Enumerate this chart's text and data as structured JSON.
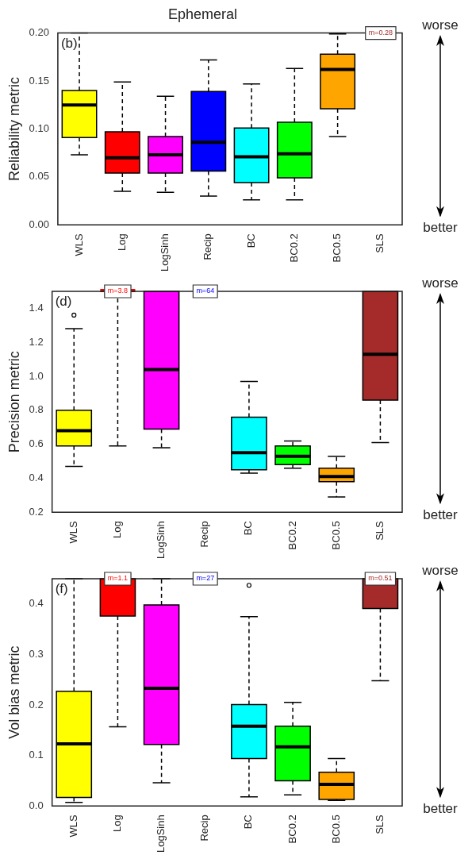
{
  "chart_data": [
    {
      "type": "box",
      "title": "Ephemeral",
      "ylabel": "Reliability metric",
      "categories": [
        "WLS",
        "Log",
        "LogSinh",
        "Recip",
        "BC",
        "BC0.2",
        "BC0.5",
        "SLS"
      ],
      "colors": [
        "#ffff00",
        "#ff0000",
        "#ff00ff",
        "#0000ff",
        "#00ffff",
        "#00ff00",
        "#ffa500",
        "#a52a2a"
      ],
      "boxes": [
        {
          "low": 0.073,
          "q1": 0.091,
          "median": 0.125,
          "q3": 0.14,
          "high": 0.2
        },
        {
          "low": 0.035,
          "q1": 0.054,
          "median": 0.07,
          "q3": 0.097,
          "high": 0.149
        },
        {
          "low": 0.034,
          "q1": 0.054,
          "median": 0.073,
          "q3": 0.092,
          "high": 0.134
        },
        {
          "low": 0.03,
          "q1": 0.056,
          "median": 0.086,
          "q3": 0.139,
          "high": 0.172
        },
        {
          "low": 0.026,
          "q1": 0.044,
          "median": 0.071,
          "q3": 0.101,
          "high": 0.147
        },
        {
          "low": 0.026,
          "q1": 0.049,
          "median": 0.074,
          "q3": 0.107,
          "high": 0.163
        },
        {
          "low": 0.092,
          "q1": 0.121,
          "median": 0.162,
          "q3": 0.178,
          "high": 0.199
        },
        null
      ],
      "ylim": [
        0,
        0.2
      ],
      "yticks": [
        {
          "value": 0,
          "label": "0.00"
        },
        {
          "value": 0.05,
          "label": "0.05"
        },
        {
          "value": 0.1,
          "label": "0.10"
        },
        {
          "value": 0.15,
          "label": "0.15"
        },
        {
          "value": 0.2,
          "label": "0.20"
        }
      ],
      "annotations": [
        "(b)",
        "worse",
        "better",
        {
          "text": "m=0.28",
          "x": "SLS"
        }
      ]
    },
    {
      "type": "box",
      "ylabel": "Precision metric",
      "categories": [
        "WLS",
        "Log",
        "LogSinh",
        "Recip",
        "BC",
        "BC0.2",
        "BC0.5",
        "SLS"
      ],
      "colors": [
        "#ffff00",
        "#ff0000",
        "#ff00ff",
        "#0000ff",
        "#00ffff",
        "#00ff00",
        "#ffa500",
        "#a52a2a"
      ],
      "boxes": [
        {
          "low": 0.47,
          "q1": 0.59,
          "median": 0.68,
          "q3": 0.8,
          "high": 1.28,
          "outliers": [
            1.36
          ]
        },
        {
          "low": 0.59,
          "q1": 1.5,
          "median": null,
          "q3": 1.5,
          "high": null
        },
        {
          "low": 0.58,
          "q1": 0.69,
          "median": 1.04,
          "q3": 1.5,
          "high": null
        },
        null,
        {
          "low": 0.43,
          "q1": 0.45,
          "median": 0.55,
          "q3": 0.76,
          "high": 0.97
        },
        {
          "low": 0.46,
          "q1": 0.48,
          "median": 0.53,
          "q3": 0.59,
          "high": 0.62
        },
        {
          "low": 0.29,
          "q1": 0.38,
          "median": 0.41,
          "q3": 0.46,
          "high": 0.53
        },
        {
          "low": 0.61,
          "q1": 0.86,
          "median": 1.13,
          "q3": 1.5,
          "high": null
        }
      ],
      "ylim": [
        0.2,
        1.5
      ],
      "yticks": [
        0.2,
        0.4,
        0.6,
        0.8,
        {
          "value": 1,
          "label": "1.0"
        },
        1.2,
        1.4
      ],
      "annotations": [
        "(d)",
        "worse",
        "better",
        {
          "text": "m=3.8",
          "x": "Log"
        },
        {
          "text": "m=64",
          "x": "Recip"
        }
      ]
    },
    {
      "type": "box",
      "ylabel": "Vol bias metric",
      "categories": [
        "WLS",
        "Log",
        "LogSinh",
        "Recip",
        "BC",
        "BC0.2",
        "BC0.5",
        "SLS"
      ],
      "colors": [
        "#ffff00",
        "#ff0000",
        "#ff00ff",
        "#0000ff",
        "#00ffff",
        "#00ff00",
        "#ffa500",
        "#a52a2a"
      ],
      "boxes": [
        {
          "low": 0.007,
          "q1": 0.017,
          "median": 0.123,
          "q3": 0.227,
          "high": 0.45
        },
        {
          "low": 0.157,
          "q1": 0.376,
          "median": null,
          "q3": 0.45,
          "high": null
        },
        {
          "low": 0.046,
          "q1": 0.122,
          "median": 0.233,
          "q3": 0.398,
          "high": 0.45
        },
        null,
        {
          "low": 0.018,
          "q1": 0.094,
          "median": 0.158,
          "q3": 0.201,
          "high": 0.375,
          "outliers": [
            0.437
          ]
        },
        {
          "low": 0.022,
          "q1": 0.05,
          "median": 0.117,
          "q3": 0.158,
          "high": 0.205
        },
        {
          "low": 0.011,
          "q1": 0.013,
          "median": 0.043,
          "q3": 0.067,
          "high": 0.094
        },
        {
          "low": 0.248,
          "q1": 0.391,
          "median": null,
          "q3": 0.45,
          "high": null
        }
      ],
      "ylim": [
        0,
        0.45
      ],
      "yticks": [
        {
          "value": 0,
          "label": "0.0"
        },
        0.1,
        0.2,
        0.3,
        0.4
      ],
      "annotations": [
        "(f)",
        "worse",
        "better",
        {
          "text": "m=1.1",
          "x": "Log"
        },
        {
          "text": "m=27",
          "x": "Recip"
        },
        {
          "text": "m=0.51",
          "x": "SLS"
        }
      ]
    }
  ]
}
